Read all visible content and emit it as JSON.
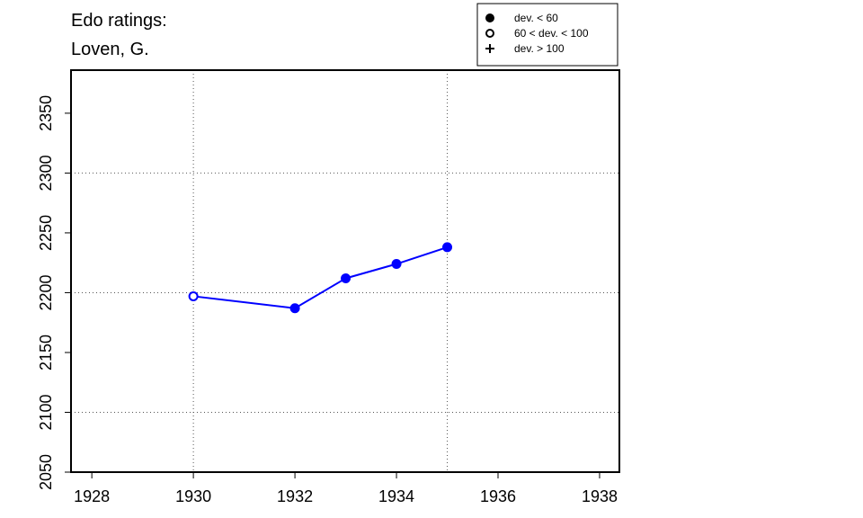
{
  "chart_data": {
    "type": "line",
    "title": "Edo ratings:",
    "subtitle": "Loven, G.",
    "x": [
      1930,
      1932,
      1933,
      1934,
      1935
    ],
    "series": [
      {
        "color": "#0000ff",
        "values": [
          2197,
          2187,
          2212,
          2224,
          2238
        ],
        "markers": [
          "open",
          "filled",
          "filled",
          "filled",
          "filled"
        ]
      }
    ],
    "xlim": [
      1927.59,
      1938.39
    ],
    "ylim": [
      2050,
      2386
    ],
    "xticks": [
      1928,
      1930,
      1932,
      1934,
      1936,
      1938
    ],
    "yticks": [
      2050,
      2100,
      2150,
      2200,
      2250,
      2300,
      2350
    ],
    "xgrid": [
      1930,
      1935
    ],
    "ygrid": [
      2100,
      2200,
      2300
    ],
    "legend": [
      {
        "label": "dev. < 60",
        "symbol": "filled"
      },
      {
        "label": "60 < dev. < 100",
        "symbol": "open"
      },
      {
        "label": "dev. > 100",
        "symbol": "plus"
      }
    ],
    "legend_position": "top-right"
  }
}
